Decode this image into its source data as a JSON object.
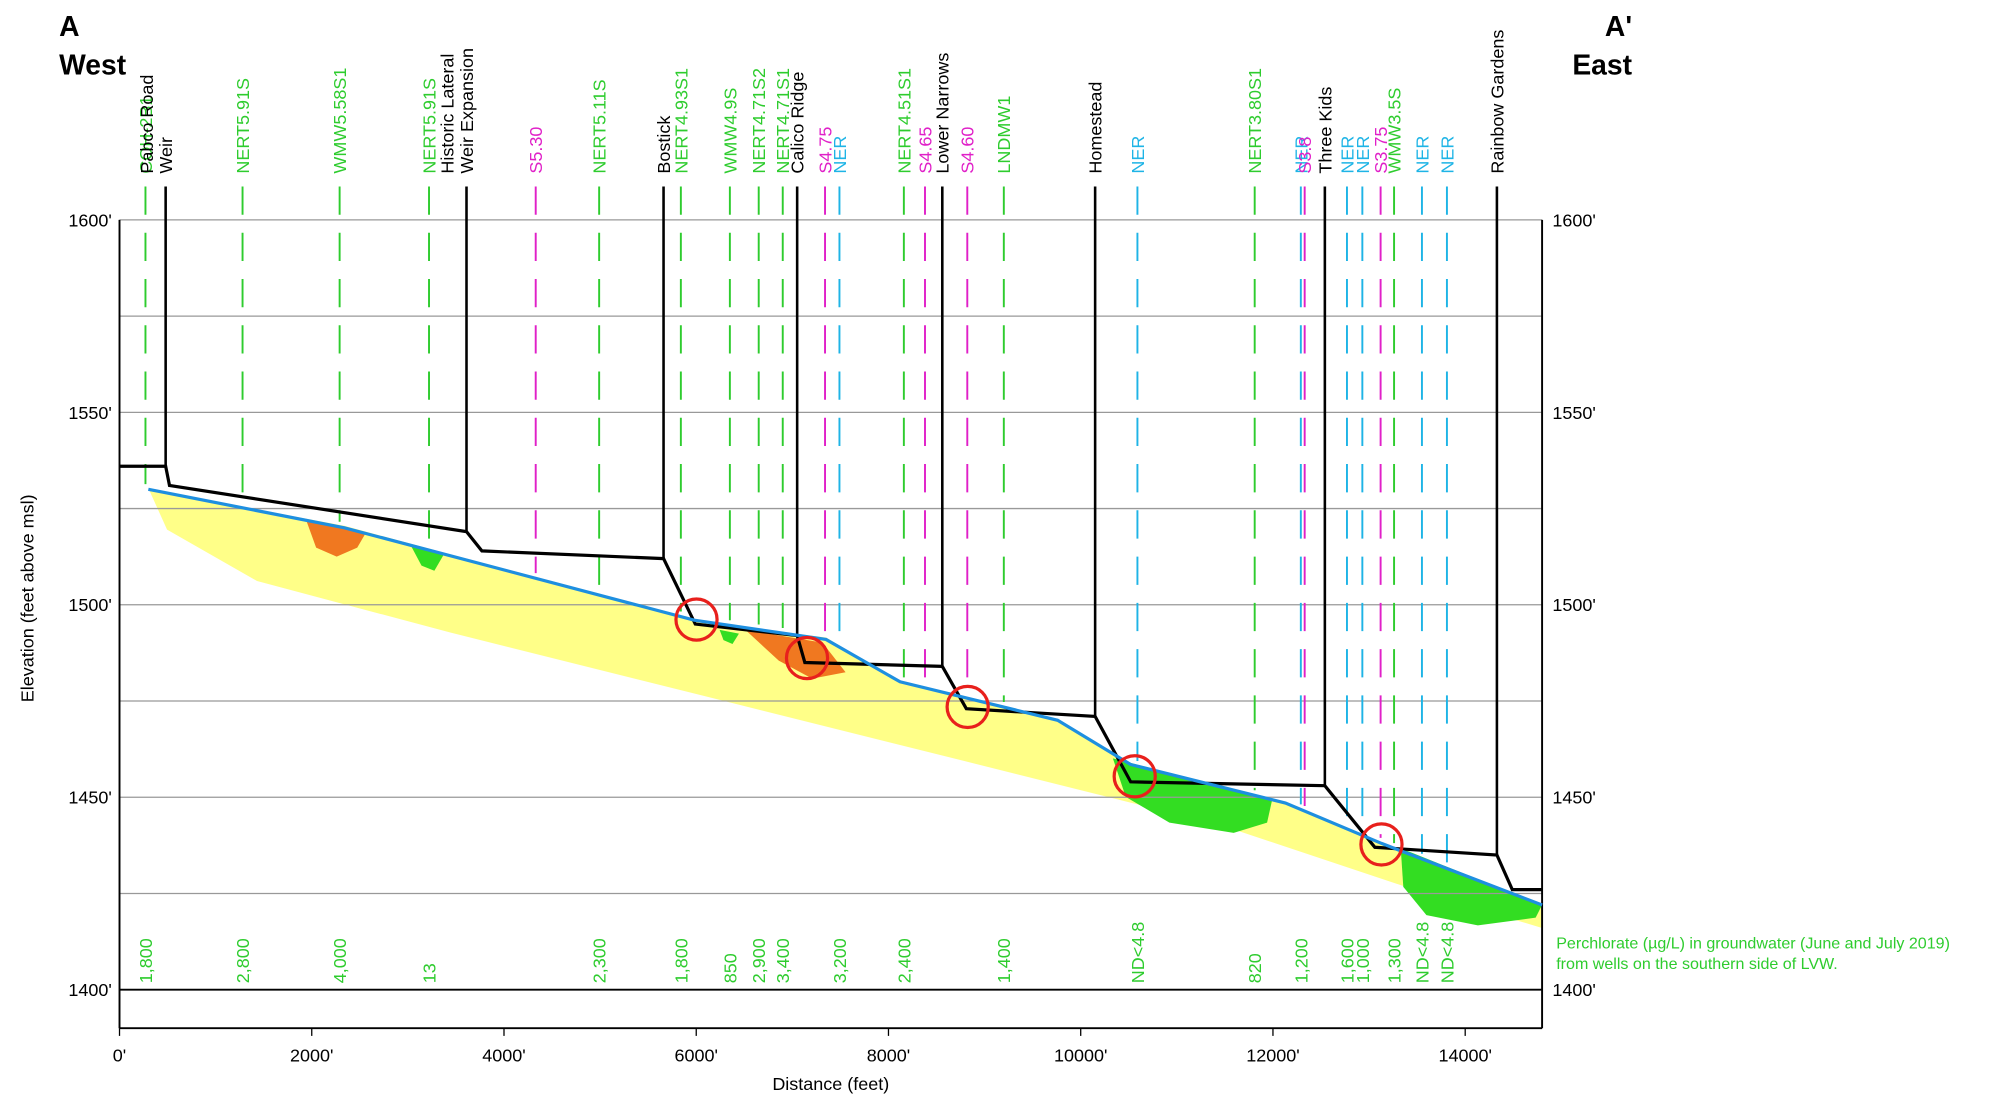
{
  "chart_data": {
    "type": "cross-section",
    "corner_left": [
      "A",
      "West"
    ],
    "corner_right": [
      "A'",
      "East"
    ],
    "x_label": "Distance (feet)",
    "y_label": "Elevation (feet above msl)",
    "xlim": [
      0,
      14800
    ],
    "ylim": [
      1390,
      1600
    ],
    "xticks": [
      {
        "value": 0,
        "label": "0'"
      },
      {
        "value": 2000,
        "label": "2000'"
      },
      {
        "value": 4000,
        "label": "4000'"
      },
      {
        "value": 6000,
        "label": "6000'"
      },
      {
        "value": 8000,
        "label": "8000'"
      },
      {
        "value": 10000,
        "label": "10000'"
      },
      {
        "value": 12000,
        "label": "12000'"
      },
      {
        "value": 14000,
        "label": "14000'"
      }
    ],
    "yticks": [
      {
        "value": 1400,
        "label": "1400'"
      },
      {
        "value": 1450,
        "label": "1450'"
      },
      {
        "value": 1500,
        "label": "1500'"
      },
      {
        "value": 1550,
        "label": "1550'"
      },
      {
        "value": 1600,
        "label": "1600'"
      }
    ],
    "minor_gridlines": [
      1425,
      1475,
      1525,
      1575
    ],
    "ground": {
      "color": "#000000",
      "x": [
        0,
        480,
        520,
        3610,
        3770,
        5660,
        5990,
        7050,
        7130,
        8560,
        8810,
        10150,
        10520,
        12540,
        13060,
        14330,
        14490,
        14800
      ],
      "y": [
        1536,
        1536,
        1531,
        1519,
        1514,
        1512,
        1495,
        1492,
        1485,
        1484,
        1473,
        1471,
        1454,
        1453,
        1437,
        1435,
        1426,
        1426
      ]
    },
    "water_table": {
      "color": "#1e8fe0",
      "x": [
        300,
        2340,
        5980,
        7350,
        8120,
        9760,
        10520,
        12130,
        13130,
        14800
      ],
      "y": [
        1530,
        1520,
        1496,
        1491,
        1480,
        1470,
        1458.5,
        1448.5,
        1438,
        1422
      ]
    },
    "landmarks": [
      {
        "label": [
          "Pabco Road",
          "Weir"
        ],
        "x": 480
      },
      {
        "label": [
          "Historic Lateral",
          "Weir Expansion"
        ],
        "x": 3610
      },
      {
        "label": [
          "Bostick"
        ],
        "x": 5660
      },
      {
        "label": [
          "Calico Ridge"
        ],
        "x": 7050
      },
      {
        "label": [
          "Lower Narrows"
        ],
        "x": 8560
      },
      {
        "label": [
          "Homestead"
        ],
        "x": 10150
      },
      {
        "label": [
          "Three Kids"
        ],
        "x": 12540
      },
      {
        "label": [
          "Rainbow Gardens"
        ],
        "x": 14330
      }
    ],
    "wells": [
      {
        "name": "COH-2B1",
        "x": 270,
        "color": "#2ecc2e",
        "perchlorate": "1,800"
      },
      {
        "name": "NERT5.91S",
        "x": 1280,
        "color": "#2ecc2e",
        "perchlorate": "2,800"
      },
      {
        "name": "WMW5.58S1",
        "x": 2290,
        "color": "#2ecc2e",
        "perchlorate": "4,000"
      },
      {
        "name": "NERT5.91S",
        "x": 3220,
        "color": "#2ecc2e",
        "perchlorate": "13"
      },
      {
        "name": "S5.30",
        "x": 4330,
        "color": "#e020c8",
        "perchlorate": null
      },
      {
        "name": "NERT5.11S",
        "x": 4990,
        "color": "#2ecc2e",
        "perchlorate": "2,300"
      },
      {
        "name": "NERT4.93S1",
        "x": 5840,
        "color": "#2ecc2e",
        "perchlorate": "1,800"
      },
      {
        "name": "WMW4.9S",
        "x": 6350,
        "color": "#2ecc2e",
        "perchlorate": "850"
      },
      {
        "name": "NERT4.71S2",
        "x": 6650,
        "color": "#2ecc2e",
        "perchlorate": "2,900"
      },
      {
        "name": "NERT4.71S1",
        "x": 6900,
        "color": "#2ecc2e",
        "perchlorate": "3,400"
      },
      {
        "name": "S4.75",
        "x": 7340,
        "color": "#e020c8",
        "perchlorate": null
      },
      {
        "name": "NER",
        "x": 7490,
        "color": "#1eb4e6",
        "perchlorate": "3,200"
      },
      {
        "name": "NERT4.51S1",
        "x": 8160,
        "color": "#2ecc2e",
        "perchlorate": "2,400"
      },
      {
        "name": "S4.65",
        "x": 8380,
        "color": "#e020c8",
        "perchlorate": null
      },
      {
        "name": "S4.60",
        "x": 8820,
        "color": "#e020c8",
        "perchlorate": null
      },
      {
        "name": "LNDMW1",
        "x": 9200,
        "color": "#2ecc2e",
        "perchlorate": "1,400"
      },
      {
        "name": "NER",
        "x": 10590,
        "color": "#1eb4e6",
        "perchlorate": "ND<4.8"
      },
      {
        "name": "NERT3.80S1",
        "x": 11810,
        "color": "#2ecc2e",
        "perchlorate": "820"
      },
      {
        "name": "NER",
        "x": 12290,
        "color": "#1eb4e6",
        "perchlorate": "1,200"
      },
      {
        "name": "S3.8",
        "x": 12330,
        "color": "#e020c8",
        "perchlorate": null
      },
      {
        "name": "NER",
        "x": 12770,
        "color": "#1eb4e6",
        "perchlorate": "1,600"
      },
      {
        "name": "NER",
        "x": 12930,
        "color": "#1eb4e6",
        "perchlorate": "1,000"
      },
      {
        "name": "S3.75",
        "x": 13120,
        "color": "#e020c8",
        "perchlorate": null
      },
      {
        "name": "WMW3.5S",
        "x": 13260,
        "color": "#2ecc2e",
        "perchlorate": "1,300"
      },
      {
        "name": "NER",
        "x": 13550,
        "color": "#1eb4e6",
        "perchlorate": "ND<4.8"
      },
      {
        "name": "NER",
        "x": 13810,
        "color": "#1eb4e6",
        "perchlorate": "ND<4.8"
      }
    ],
    "value_color": "#2ecc2e",
    "note": [
      "Perchlorate (µg/L) in groundwater (June and July 2019)",
      "from wells on the southern side of LVW."
    ]
  }
}
